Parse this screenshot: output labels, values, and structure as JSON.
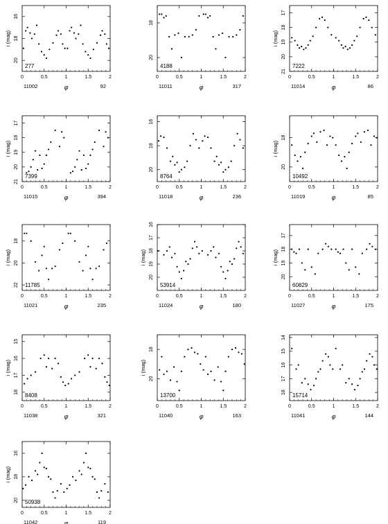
{
  "axis_label_x": "φ",
  "axis_label_y": "i (mag)",
  "panel_x_ticks": [
    "0",
    "0.5",
    "1",
    "1.5",
    "2"
  ],
  "chart_data": [
    {
      "type": "scatter",
      "label_id": "277",
      "label_left": "11002",
      "label_right": "92",
      "show_ylabel": true,
      "ylim": [
        21,
        15
      ],
      "yticks": [
        16,
        18,
        20
      ],
      "xlim": [
        0,
        2
      ],
      "x": [
        0.03,
        0.08,
        0.12,
        0.18,
        0.22,
        0.28,
        0.33,
        0.38,
        0.44,
        0.5,
        0.55,
        0.62,
        0.7,
        0.78,
        0.82,
        0.88,
        0.92,
        0.97,
        1.03,
        1.08,
        1.12,
        1.18,
        1.22,
        1.28,
        1.33,
        1.38,
        1.44,
        1.5,
        1.55,
        1.62,
        1.7,
        1.78,
        1.82,
        1.88,
        1.92,
        1.97
      ],
      "y": [
        18.9,
        17.3,
        17.0,
        17.5,
        18.0,
        17.6,
        16.8,
        18.5,
        19.2,
        19.5,
        19.8,
        19.0,
        18.4,
        17.7,
        17.3,
        17.6,
        18.5,
        18.9,
        18.9,
        17.3,
        17.0,
        17.5,
        18.0,
        17.6,
        16.8,
        18.5,
        19.2,
        19.5,
        19.8,
        19.0,
        18.4,
        17.7,
        17.3,
        17.6,
        18.5,
        18.9
      ]
    },
    {
      "type": "scatter",
      "label_id": "4188",
      "label_left": "11011",
      "label_right": "317",
      "show_ylabel": false,
      "ylim": [
        20.8,
        17
      ],
      "yticks": [
        18,
        20
      ],
      "xlim": [
        0,
        2
      ],
      "x": [
        0.05,
        0.1,
        0.15,
        0.2,
        0.27,
        0.33,
        0.4,
        0.48,
        0.55,
        0.63,
        0.72,
        0.8,
        0.88,
        0.95,
        1.05,
        1.1,
        1.15,
        1.2,
        1.27,
        1.33,
        1.4,
        1.48,
        1.55,
        1.63,
        1.72,
        1.8,
        1.88,
        1.95
      ],
      "y": [
        17.5,
        17.5,
        17.7,
        17.6,
        18.8,
        19.5,
        18.7,
        18.6,
        20.0,
        18.8,
        18.8,
        18.7,
        18.4,
        17.6,
        17.5,
        17.5,
        17.7,
        17.6,
        18.8,
        19.5,
        18.7,
        18.6,
        20.0,
        18.8,
        18.8,
        18.7,
        18.4,
        17.6
      ]
    },
    {
      "type": "scatter",
      "label_id": "7222",
      "label_left": "11014",
      "label_right": "86",
      "show_ylabel": true,
      "ylim": [
        21,
        16.5
      ],
      "yticks": [
        17,
        18,
        19,
        20,
        21
      ],
      "xlim": [
        0,
        2
      ],
      "x": [
        0.05,
        0.12,
        0.18,
        0.22,
        0.27,
        0.32,
        0.37,
        0.42,
        0.47,
        0.53,
        0.6,
        0.68,
        0.74,
        0.8,
        0.87,
        0.95,
        1.05,
        1.12,
        1.18,
        1.22,
        1.27,
        1.32,
        1.37,
        1.42,
        1.47,
        1.53,
        1.6,
        1.68,
        1.74,
        1.8,
        1.87,
        1.95
      ],
      "y": [
        18.7,
        18.9,
        19.2,
        19.4,
        19.3,
        19.5,
        19.4,
        19.2,
        18.9,
        18.6,
        18.0,
        17.4,
        17.3,
        17.5,
        18.0,
        18.5,
        18.7,
        18.9,
        19.2,
        19.4,
        19.3,
        19.5,
        19.4,
        19.2,
        18.9,
        18.6,
        18.0,
        17.4,
        17.3,
        17.5,
        18.0,
        18.5
      ]
    },
    {
      "type": "scatter",
      "label_id": "7399",
      "label_left": "11015",
      "label_right": "394",
      "show_ylabel": true,
      "ylim": [
        21,
        16.5
      ],
      "yticks": [
        17,
        18,
        19,
        20,
        21
      ],
      "xlim": [
        0,
        2
      ],
      "x": [
        0.1,
        0.15,
        0.2,
        0.25,
        0.3,
        0.35,
        0.4,
        0.45,
        0.5,
        0.55,
        0.6,
        0.65,
        0.75,
        0.85,
        0.9,
        0.95,
        1.1,
        1.15,
        1.2,
        1.25,
        1.3,
        1.35,
        1.4,
        1.45,
        1.5,
        1.55,
        1.6,
        1.65,
        1.75,
        1.85,
        1.9,
        1.95
      ],
      "y": [
        20.4,
        20.3,
        20.0,
        19.5,
        18.9,
        20.2,
        19.2,
        20.1,
        19.8,
        19.2,
        18.8,
        18.3,
        17.5,
        18.6,
        17.6,
        18.0,
        20.4,
        20.3,
        20.0,
        19.5,
        18.9,
        20.2,
        19.2,
        20.1,
        19.8,
        19.2,
        18.8,
        18.3,
        17.5,
        18.6,
        17.6,
        18.0
      ]
    },
    {
      "type": "scatter",
      "label_id": "8764",
      "label_left": "11018",
      "label_right": "236",
      "show_ylabel": false,
      "ylim": [
        21,
        15.5
      ],
      "yticks": [
        16,
        18,
        20
      ],
      "xlim": [
        0,
        2
      ],
      "x": [
        0.03,
        0.08,
        0.15,
        0.22,
        0.3,
        0.35,
        0.4,
        0.45,
        0.5,
        0.55,
        0.62,
        0.68,
        0.75,
        0.82,
        0.88,
        0.95,
        1.03,
        1.08,
        1.15,
        1.22,
        1.3,
        1.35,
        1.4,
        1.45,
        1.5,
        1.55,
        1.62,
        1.68,
        1.75,
        1.82,
        1.88,
        1.95
      ],
      "y": [
        17.6,
        17.2,
        17.3,
        18.2,
        19.3,
        18.9,
        19.6,
        19.4,
        20.2,
        20.0,
        19.8,
        19.3,
        18.0,
        17.0,
        17.5,
        18.2,
        17.6,
        17.2,
        17.3,
        18.2,
        19.3,
        18.9,
        19.6,
        19.4,
        20.2,
        20.0,
        19.8,
        19.3,
        18.0,
        17.0,
        17.5,
        18.2
      ]
    },
    {
      "type": "scatter",
      "label_id": "10492",
      "label_left": "11019",
      "label_right": "85",
      "show_ylabel": true,
      "ylim": [
        21,
        16.5
      ],
      "yticks": [
        18,
        20
      ],
      "xlim": [
        0,
        2
      ],
      "x": [
        0.05,
        0.12,
        0.18,
        0.25,
        0.3,
        0.35,
        0.42,
        0.5,
        0.55,
        0.62,
        0.7,
        0.78,
        0.85,
        0.92,
        0.98,
        1.05,
        1.12,
        1.18,
        1.25,
        1.3,
        1.35,
        1.42,
        1.5,
        1.55,
        1.62,
        1.7,
        1.78,
        1.85,
        1.92,
        1.98
      ],
      "y": [
        18.5,
        19.2,
        19.6,
        19.3,
        20.1,
        19.0,
        18.4,
        17.9,
        17.7,
        18.3,
        17.6,
        17.5,
        18.5,
        17.9,
        18.0,
        18.5,
        19.2,
        19.6,
        19.3,
        20.1,
        19.0,
        18.4,
        17.9,
        17.7,
        18.3,
        17.6,
        17.5,
        18.5,
        17.9,
        18.0
      ]
    },
    {
      "type": "scatter",
      "label_id": "11785",
      "label_left": "11021",
      "label_right": "235",
      "show_ylabel": true,
      "ylim": [
        22.5,
        16.5
      ],
      "yticks": [
        18,
        20,
        22
      ],
      "xlim": [
        0,
        2
      ],
      "x": [
        0.05,
        0.1,
        0.2,
        0.3,
        0.38,
        0.45,
        0.5,
        0.55,
        0.6,
        0.68,
        0.75,
        0.85,
        0.92,
        1.05,
        1.1,
        1.2,
        1.3,
        1.38,
        1.45,
        1.5,
        1.55,
        1.6,
        1.68,
        1.75,
        1.85,
        1.92
      ],
      "y": [
        17.3,
        17.3,
        18.0,
        19.9,
        20.7,
        19.3,
        18.5,
        20.5,
        21.5,
        20.5,
        20.3,
        18.8,
        18.2,
        17.3,
        17.3,
        18.0,
        19.9,
        20.7,
        19.3,
        18.5,
        20.5,
        21.5,
        20.5,
        20.3,
        18.8,
        18.2
      ]
    },
    {
      "type": "scatter",
      "label_id": "53914",
      "label_left": "11024",
      "label_right": "180",
      "show_ylabel": true,
      "ylim": [
        21,
        16
      ],
      "yticks": [
        16,
        17,
        18,
        19,
        20
      ],
      "xlim": [
        0,
        2
      ],
      "x": [
        0.02,
        0.15,
        0.22,
        0.28,
        0.33,
        0.4,
        0.45,
        0.5,
        0.55,
        0.6,
        0.65,
        0.7,
        0.75,
        0.8,
        0.85,
        0.9,
        0.95,
        1.02,
        1.15,
        1.22,
        1.28,
        1.33,
        1.4,
        1.45,
        1.5,
        1.55,
        1.6,
        1.65,
        1.7,
        1.75,
        1.8,
        1.85,
        1.9,
        1.95
      ],
      "y": [
        18.0,
        18.3,
        18.0,
        17.7,
        18.5,
        18.2,
        19.2,
        19.6,
        20.1,
        19.5,
        18.8,
        19.0,
        18.6,
        17.8,
        17.3,
        17.7,
        18.2,
        18.0,
        18.3,
        18.0,
        17.7,
        18.5,
        18.2,
        19.2,
        19.6,
        20.1,
        19.5,
        18.8,
        19.0,
        18.6,
        17.8,
        17.3,
        17.7,
        18.2
      ]
    },
    {
      "type": "scatter",
      "label_id": "60829",
      "label_left": "11027",
      "label_right": "175",
      "show_ylabel": true,
      "ylim": [
        21,
        16.2
      ],
      "yticks": [
        17,
        18,
        19,
        20
      ],
      "xlim": [
        0,
        2
      ],
      "x": [
        0.05,
        0.1,
        0.15,
        0.22,
        0.28,
        0.35,
        0.42,
        0.5,
        0.58,
        0.65,
        0.75,
        0.82,
        0.88,
        0.95,
        1.05,
        1.1,
        1.15,
        1.22,
        1.28,
        1.35,
        1.42,
        1.5,
        1.58,
        1.65,
        1.75,
        1.82,
        1.88,
        1.95
      ],
      "y": [
        18.0,
        18.2,
        18.3,
        18.0,
        19.0,
        19.5,
        18.0,
        19.3,
        19.8,
        18.3,
        18.0,
        17.6,
        17.8,
        18.0,
        18.0,
        18.2,
        18.3,
        18.0,
        19.0,
        19.5,
        18.0,
        19.3,
        19.8,
        18.3,
        18.0,
        17.6,
        17.8,
        18.0
      ]
    },
    {
      "type": "scatter",
      "label_id": "8408",
      "label_left": "11038",
      "label_right": "321",
      "show_ylabel": true,
      "ylim": [
        18.5,
        14.6
      ],
      "yticks": [
        15,
        16,
        17,
        18
      ],
      "xlim": [
        0,
        2
      ],
      "x": [
        0.05,
        0.12,
        0.2,
        0.3,
        0.42,
        0.5,
        0.55,
        0.6,
        0.68,
        0.75,
        0.82,
        0.88,
        0.93,
        0.98,
        1.05,
        1.12,
        1.2,
        1.3,
        1.42,
        1.5,
        1.55,
        1.6,
        1.68,
        1.75,
        1.82,
        1.88,
        1.93,
        1.98
      ],
      "y": [
        17.5,
        17.2,
        17.0,
        16.8,
        16.0,
        15.8,
        16.5,
        16.0,
        16.6,
        16.0,
        16.3,
        17.1,
        17.4,
        17.6,
        17.5,
        17.2,
        17.0,
        16.8,
        16.0,
        15.8,
        16.5,
        16.0,
        16.6,
        16.0,
        16.3,
        17.1,
        17.4,
        17.6
      ]
    },
    {
      "type": "scatter",
      "label_id": "13700",
      "label_left": "11040",
      "label_right": "163",
      "show_ylabel": true,
      "ylim": [
        21.5,
        17
      ],
      "yticks": [
        18,
        20
      ],
      "xlim": [
        0,
        2
      ],
      "x": [
        0.05,
        0.1,
        0.15,
        0.22,
        0.3,
        0.38,
        0.45,
        0.5,
        0.55,
        0.62,
        0.7,
        0.78,
        0.85,
        0.92,
        0.98,
        1.05,
        1.1,
        1.15,
        1.22,
        1.3,
        1.38,
        1.45,
        1.5,
        1.55,
        1.62,
        1.7,
        1.78,
        1.85,
        1.92,
        1.98
      ],
      "y": [
        19.4,
        18.5,
        19.7,
        19.5,
        20.1,
        19.2,
        20.2,
        20.8,
        19.5,
        18.5,
        18.0,
        17.9,
        18.2,
        18.3,
        19.0,
        19.4,
        18.5,
        19.7,
        19.5,
        20.1,
        19.2,
        20.2,
        20.8,
        19.5,
        18.5,
        18.0,
        17.9,
        18.2,
        18.3,
        19.0
      ]
    },
    {
      "type": "scatter",
      "label_id": "15714",
      "label_left": "11041",
      "label_right": "144",
      "show_ylabel": false,
      "ylim": [
        18.6,
        13.8
      ],
      "yticks": [
        14,
        15,
        16,
        17,
        18
      ],
      "xlim": [
        0,
        2
      ],
      "x": [
        0.05,
        0.15,
        0.2,
        0.28,
        0.35,
        0.42,
        0.48,
        0.55,
        0.6,
        0.65,
        0.7,
        0.75,
        0.82,
        0.88,
        0.92,
        0.98,
        1.05,
        1.15,
        1.2,
        1.28,
        1.35,
        1.42,
        1.48,
        1.55,
        1.6,
        1.65,
        1.7,
        1.75,
        1.82,
        1.88,
        1.92,
        1.98
      ],
      "y": [
        14.8,
        16.3,
        16.0,
        17.3,
        17.0,
        17.4,
        17.8,
        17.5,
        17.0,
        16.5,
        16.3,
        15.7,
        15.2,
        15.4,
        16.0,
        16.3,
        14.8,
        16.3,
        16.0,
        17.3,
        17.0,
        17.4,
        17.8,
        17.5,
        17.0,
        16.5,
        16.3,
        15.7,
        15.2,
        15.4,
        16.0,
        16.3
      ]
    },
    {
      "type": "scatter",
      "label_id": "50938",
      "label_left": "11042",
      "label_right": "119",
      "show_ylabel": true,
      "ylim": [
        20.6,
        15
      ],
      "yticks": [
        16,
        18,
        20
      ],
      "xlim": [
        0,
        2
      ],
      "x": [
        0.02,
        0.08,
        0.15,
        0.22,
        0.3,
        0.35,
        0.4,
        0.45,
        0.5,
        0.55,
        0.6,
        0.65,
        0.7,
        0.75,
        0.8,
        0.88,
        0.95,
        1.02,
        1.08,
        1.15,
        1.22,
        1.3,
        1.35,
        1.4,
        1.45,
        1.5,
        1.55,
        1.6,
        1.65,
        1.7,
        1.75,
        1.8,
        1.88,
        1.95
      ],
      "y": [
        19.0,
        18.7,
        18.0,
        18.3,
        17.5,
        17.8,
        16.8,
        16.0,
        17.2,
        17.3,
        18.0,
        18.2,
        19.3,
        19.8,
        19.2,
        18.6,
        19.3,
        19.0,
        18.7,
        18.0,
        18.3,
        17.5,
        17.8,
        16.8,
        16.0,
        17.2,
        17.3,
        18.0,
        18.2,
        19.3,
        19.8,
        19.2,
        18.6,
        19.3
      ]
    }
  ]
}
